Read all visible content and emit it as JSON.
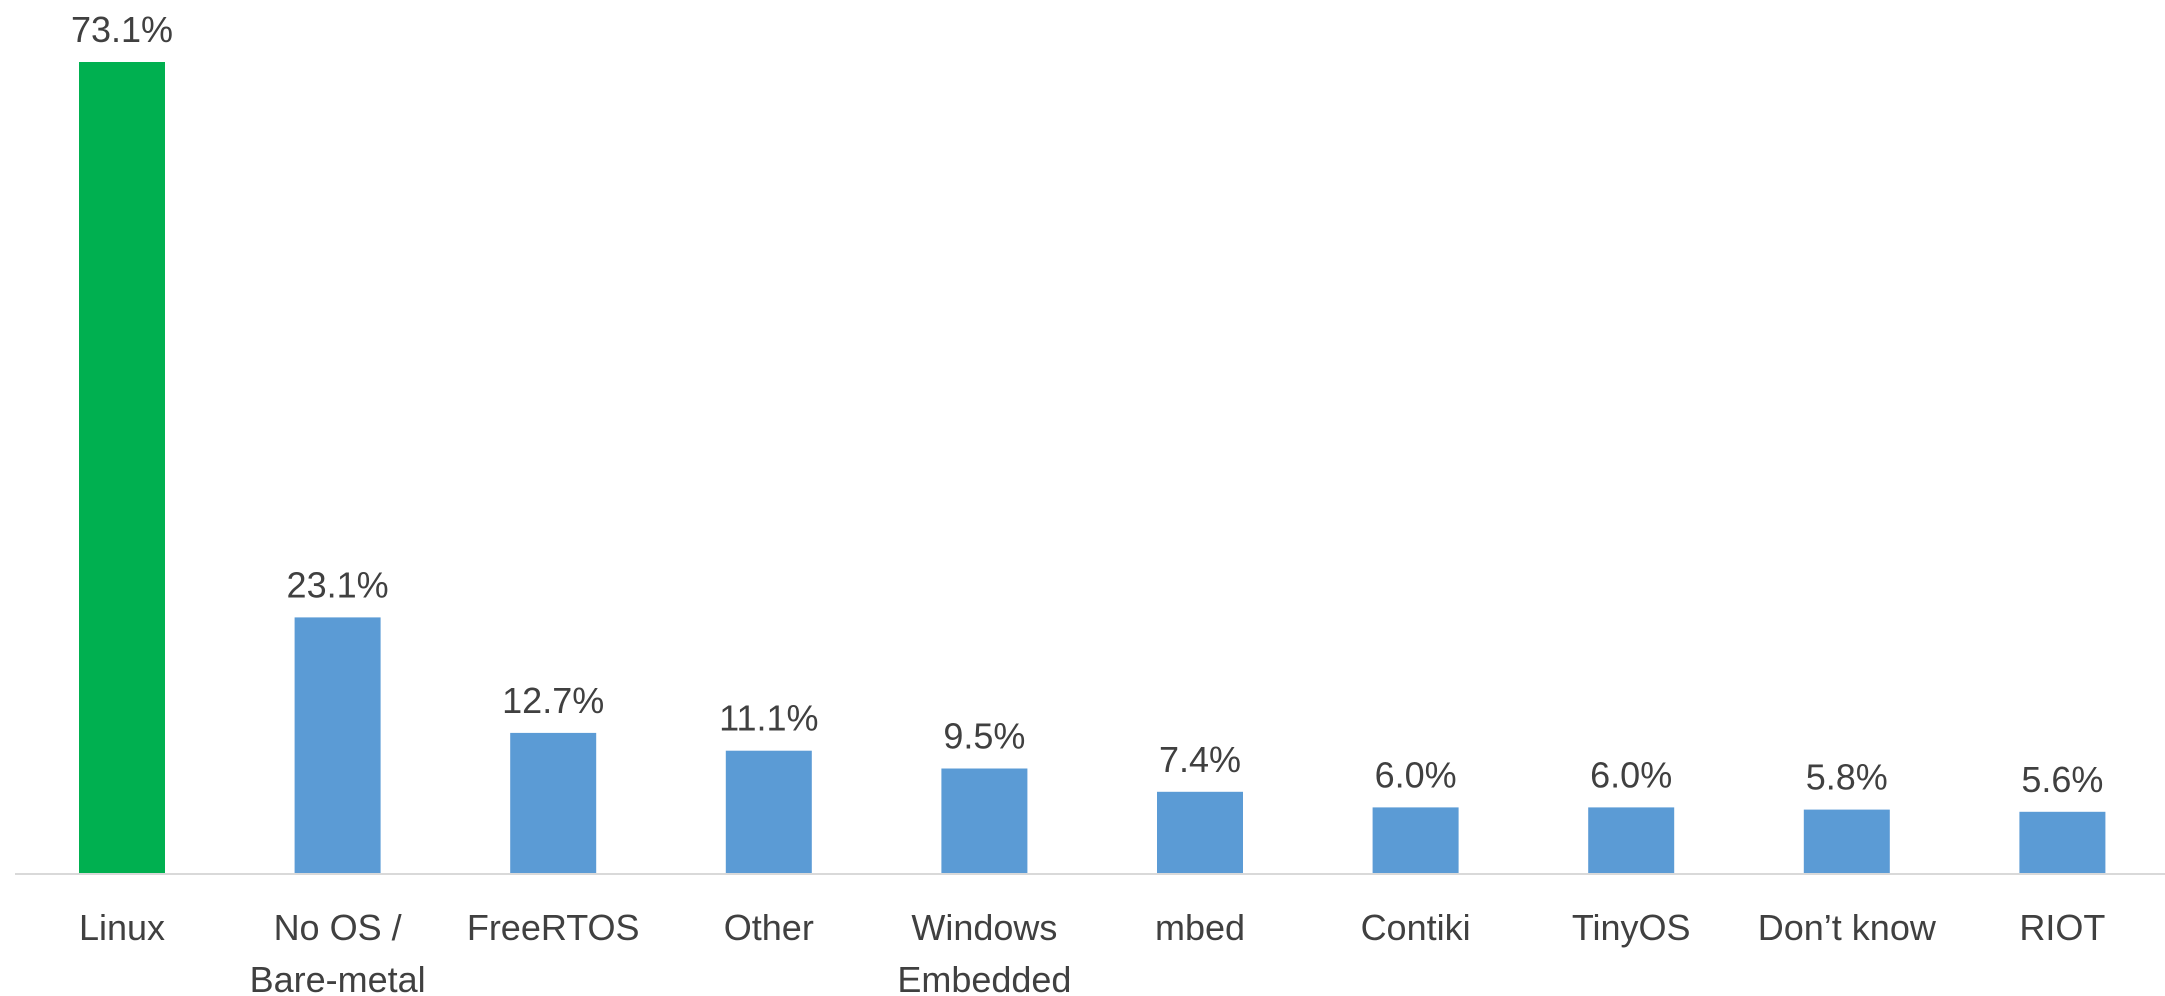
{
  "chart_data": {
    "type": "bar",
    "categories": [
      [
        "Linux"
      ],
      [
        "No OS /",
        "Bare-metal"
      ],
      [
        "FreeRTOS"
      ],
      [
        "Other"
      ],
      [
        "Windows",
        "Embedded"
      ],
      [
        "mbed"
      ],
      [
        "Contiki"
      ],
      [
        "TinyOS"
      ],
      [
        "Don’t know"
      ],
      [
        "RIOT"
      ]
    ],
    "values": [
      73.1,
      23.1,
      12.7,
      11.1,
      9.5,
      7.4,
      6.0,
      6.0,
      5.8,
      5.6
    ],
    "value_labels": [
      "73.1%",
      "23.1%",
      "12.7%",
      "11.1%",
      "9.5%",
      "7.4%",
      "6.0%",
      "6.0%",
      "5.8%",
      "5.6%"
    ],
    "ylim": [
      0,
      73.1
    ],
    "grid": false,
    "highlight_index": 0,
    "colors": {
      "highlight": "#00B050",
      "default": "#5B9BD5",
      "axis": "#D9D9D9",
      "text": "#404040"
    }
  }
}
